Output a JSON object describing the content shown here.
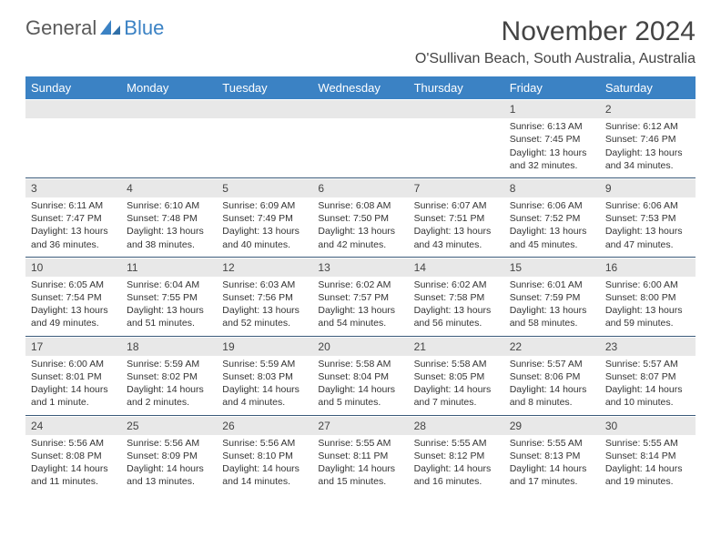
{
  "brand": {
    "part1": "General",
    "part2": "Blue"
  },
  "title": "November 2024",
  "subtitle": "O'Sullivan Beach, South Australia, Australia",
  "colors": {
    "accent": "#3b82c4",
    "row_head": "#e8e8e8",
    "divider": "#3b5a7a"
  },
  "weekdays": [
    "Sunday",
    "Monday",
    "Tuesday",
    "Wednesday",
    "Thursday",
    "Friday",
    "Saturday"
  ],
  "weeks": [
    [
      null,
      null,
      null,
      null,
      null,
      {
        "n": "1",
        "sunrise": "6:13 AM",
        "sunset": "7:45 PM",
        "daylight": "13 hours and 32 minutes."
      },
      {
        "n": "2",
        "sunrise": "6:12 AM",
        "sunset": "7:46 PM",
        "daylight": "13 hours and 34 minutes."
      }
    ],
    [
      {
        "n": "3",
        "sunrise": "6:11 AM",
        "sunset": "7:47 PM",
        "daylight": "13 hours and 36 minutes."
      },
      {
        "n": "4",
        "sunrise": "6:10 AM",
        "sunset": "7:48 PM",
        "daylight": "13 hours and 38 minutes."
      },
      {
        "n": "5",
        "sunrise": "6:09 AM",
        "sunset": "7:49 PM",
        "daylight": "13 hours and 40 minutes."
      },
      {
        "n": "6",
        "sunrise": "6:08 AM",
        "sunset": "7:50 PM",
        "daylight": "13 hours and 42 minutes."
      },
      {
        "n": "7",
        "sunrise": "6:07 AM",
        "sunset": "7:51 PM",
        "daylight": "13 hours and 43 minutes."
      },
      {
        "n": "8",
        "sunrise": "6:06 AM",
        "sunset": "7:52 PM",
        "daylight": "13 hours and 45 minutes."
      },
      {
        "n": "9",
        "sunrise": "6:06 AM",
        "sunset": "7:53 PM",
        "daylight": "13 hours and 47 minutes."
      }
    ],
    [
      {
        "n": "10",
        "sunrise": "6:05 AM",
        "sunset": "7:54 PM",
        "daylight": "13 hours and 49 minutes."
      },
      {
        "n": "11",
        "sunrise": "6:04 AM",
        "sunset": "7:55 PM",
        "daylight": "13 hours and 51 minutes."
      },
      {
        "n": "12",
        "sunrise": "6:03 AM",
        "sunset": "7:56 PM",
        "daylight": "13 hours and 52 minutes."
      },
      {
        "n": "13",
        "sunrise": "6:02 AM",
        "sunset": "7:57 PM",
        "daylight": "13 hours and 54 minutes."
      },
      {
        "n": "14",
        "sunrise": "6:02 AM",
        "sunset": "7:58 PM",
        "daylight": "13 hours and 56 minutes."
      },
      {
        "n": "15",
        "sunrise": "6:01 AM",
        "sunset": "7:59 PM",
        "daylight": "13 hours and 58 minutes."
      },
      {
        "n": "16",
        "sunrise": "6:00 AM",
        "sunset": "8:00 PM",
        "daylight": "13 hours and 59 minutes."
      }
    ],
    [
      {
        "n": "17",
        "sunrise": "6:00 AM",
        "sunset": "8:01 PM",
        "daylight": "14 hours and 1 minute."
      },
      {
        "n": "18",
        "sunrise": "5:59 AM",
        "sunset": "8:02 PM",
        "daylight": "14 hours and 2 minutes."
      },
      {
        "n": "19",
        "sunrise": "5:59 AM",
        "sunset": "8:03 PM",
        "daylight": "14 hours and 4 minutes."
      },
      {
        "n": "20",
        "sunrise": "5:58 AM",
        "sunset": "8:04 PM",
        "daylight": "14 hours and 5 minutes."
      },
      {
        "n": "21",
        "sunrise": "5:58 AM",
        "sunset": "8:05 PM",
        "daylight": "14 hours and 7 minutes."
      },
      {
        "n": "22",
        "sunrise": "5:57 AM",
        "sunset": "8:06 PM",
        "daylight": "14 hours and 8 minutes."
      },
      {
        "n": "23",
        "sunrise": "5:57 AM",
        "sunset": "8:07 PM",
        "daylight": "14 hours and 10 minutes."
      }
    ],
    [
      {
        "n": "24",
        "sunrise": "5:56 AM",
        "sunset": "8:08 PM",
        "daylight": "14 hours and 11 minutes."
      },
      {
        "n": "25",
        "sunrise": "5:56 AM",
        "sunset": "8:09 PM",
        "daylight": "14 hours and 13 minutes."
      },
      {
        "n": "26",
        "sunrise": "5:56 AM",
        "sunset": "8:10 PM",
        "daylight": "14 hours and 14 minutes."
      },
      {
        "n": "27",
        "sunrise": "5:55 AM",
        "sunset": "8:11 PM",
        "daylight": "14 hours and 15 minutes."
      },
      {
        "n": "28",
        "sunrise": "5:55 AM",
        "sunset": "8:12 PM",
        "daylight": "14 hours and 16 minutes."
      },
      {
        "n": "29",
        "sunrise": "5:55 AM",
        "sunset": "8:13 PM",
        "daylight": "14 hours and 17 minutes."
      },
      {
        "n": "30",
        "sunrise": "5:55 AM",
        "sunset": "8:14 PM",
        "daylight": "14 hours and 19 minutes."
      }
    ]
  ],
  "labels": {
    "sunrise": "Sunrise: ",
    "sunset": "Sunset: ",
    "daylight": "Daylight: "
  }
}
